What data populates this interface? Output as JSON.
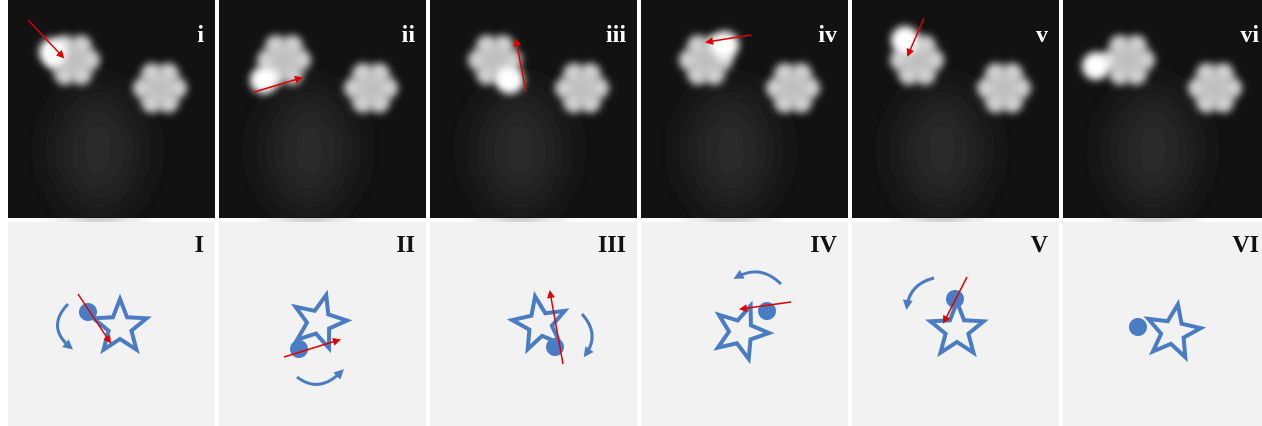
{
  "panels": [
    {
      "top_label": "i",
      "bottom_label": "I"
    },
    {
      "top_label": "ii",
      "bottom_label": "II"
    },
    {
      "top_label": "iii",
      "bottom_label": "III"
    },
    {
      "top_label": "iv",
      "bottom_label": "IV"
    },
    {
      "top_label": "v",
      "bottom_label": "V"
    },
    {
      "top_label": "vi",
      "bottom_label": "VI"
    }
  ]
}
